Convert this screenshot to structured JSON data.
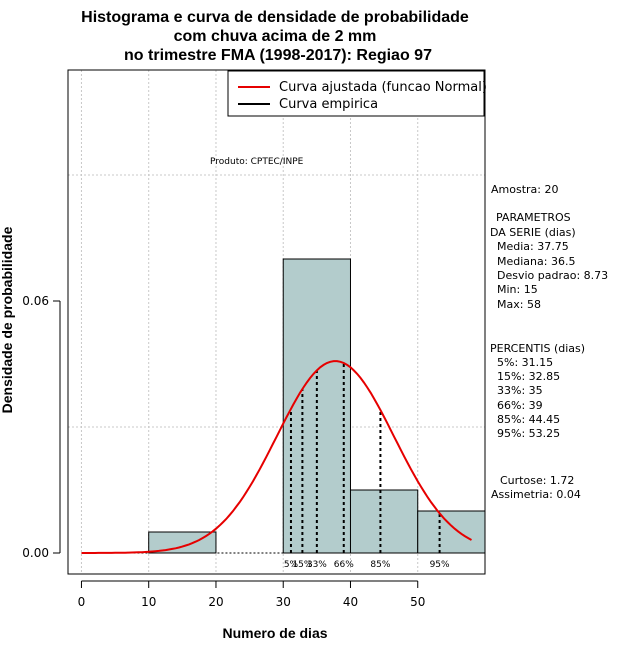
{
  "chart_data": {
    "type": "histogram",
    "title_lines": [
      "Histograma e curva de densidade de probabilidade",
      "com chuva acima de 2 mm",
      "no trimestre FMA (1998-2017): Regiao 97"
    ],
    "xlabel": "Numero de dias",
    "ylabel": "Densidade de probabilidade",
    "xlim": [
      -2,
      60
    ],
    "ylim": [
      -0.005,
      0.115
    ],
    "x_ticks": [
      0,
      10,
      20,
      30,
      40,
      50
    ],
    "y_ticks": [
      0.0,
      0.06
    ],
    "y_tick_labels": [
      "0.00",
      "0.06"
    ],
    "grid": true,
    "bins": [
      {
        "x0": 10,
        "x1": 20,
        "density": 0.005
      },
      {
        "x0": 30,
        "x1": 40,
        "density": 0.07
      },
      {
        "x0": 40,
        "x1": 50,
        "density": 0.015
      },
      {
        "x0": 50,
        "x1": 60,
        "density": 0.01
      }
    ],
    "bar_color": "#b3cccc",
    "fitted_curve": {
      "name": "Curva ajustada (funcao Normal)",
      "mean": 37.75,
      "sd": 8.73,
      "x_from": 0,
      "x_to": 58,
      "color": "#e60000"
    },
    "empirical_curve": {
      "name": "Curva empirica",
      "color": "#000000"
    },
    "percentile_lines": [
      {
        "label": "5%",
        "x": 31.15
      },
      {
        "label": "15%",
        "x": 32.85
      },
      {
        "label": "33%",
        "x": 35
      },
      {
        "label": "66%",
        "x": 39
      },
      {
        "label": "85%",
        "x": 44.45
      },
      {
        "label": "95%",
        "x": 53.25
      }
    ],
    "legend": [
      "Curva ajustada (funcao Normal)",
      "Curva empirica"
    ],
    "annotation": "Produto: CPTEC/INPE"
  },
  "side_panel": {
    "amostra": "Amostra: 20",
    "params_title_1": "PARAMETROS",
    "params_title_2": "DA SERIE (dias)",
    "media": "Media: 37.75",
    "mediana": "Mediana: 36.5",
    "desvio": "Desvio padrao: 8.73",
    "min": "Min: 15",
    "max": "Max: 58",
    "percentis_title": "PERCENTIS (dias)",
    "p5": "5%: 31.15",
    "p15": "15%: 32.85",
    "p33": "33%: 35",
    "p66": "66%: 39",
    "p85": "85%: 44.45",
    "p95": "95%: 53.25",
    "curtose": "Curtose: 1.72",
    "assimetria": "Assimetria: 0.04"
  }
}
